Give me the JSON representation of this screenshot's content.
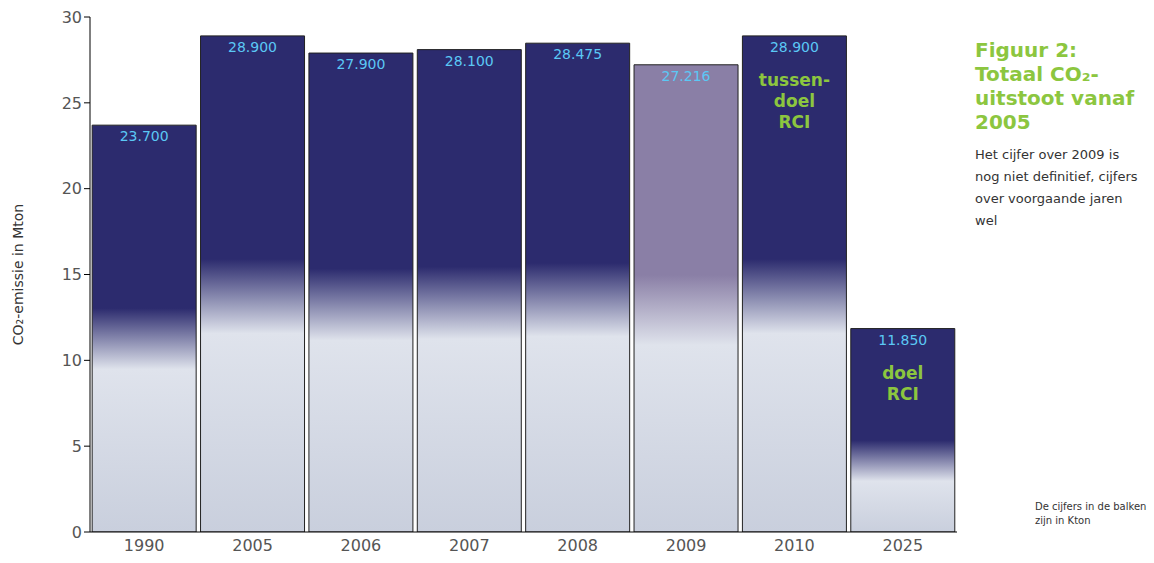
{
  "chart_data": {
    "type": "bar",
    "title": "Figuur 2: Totaal CO₂-uitstoot vanaf 2005",
    "subtitle": "Het cijfer over 2009 is nog niet definitief, cijfers over voorgaande jaren wel",
    "y_label": "CO₂-emissie in Mton",
    "note": "De cijfers in de balken zijn in Kton",
    "categories": [
      "1990",
      "2005",
      "2006",
      "2007",
      "2008",
      "2009",
      "2010",
      "2025"
    ],
    "values": [
      23.7,
      28.9,
      27.9,
      28.1,
      28.475,
      27.216,
      28.9,
      11.85
    ],
    "value_labels": [
      "23.700",
      "28.900",
      "27.900",
      "28.100",
      "28.475",
      "27.216",
      "28.900",
      "11.850"
    ],
    "colors": [
      "#2c2b6e",
      "#2c2b6e",
      "#2c2b6e",
      "#2c2b6e",
      "#2c2b6e",
      "#8a7fa6",
      "#2c2b6e",
      "#2c2b6e"
    ],
    "annotations": [
      {
        "category": "2010",
        "text": "tussen-doel RCI"
      },
      {
        "category": "2025",
        "text": "doel RCI"
      }
    ],
    "ylim": [
      0,
      30
    ],
    "yticks": [
      0,
      5,
      10,
      15,
      20,
      25,
      30
    ],
    "grid": false,
    "data_labels": true
  }
}
